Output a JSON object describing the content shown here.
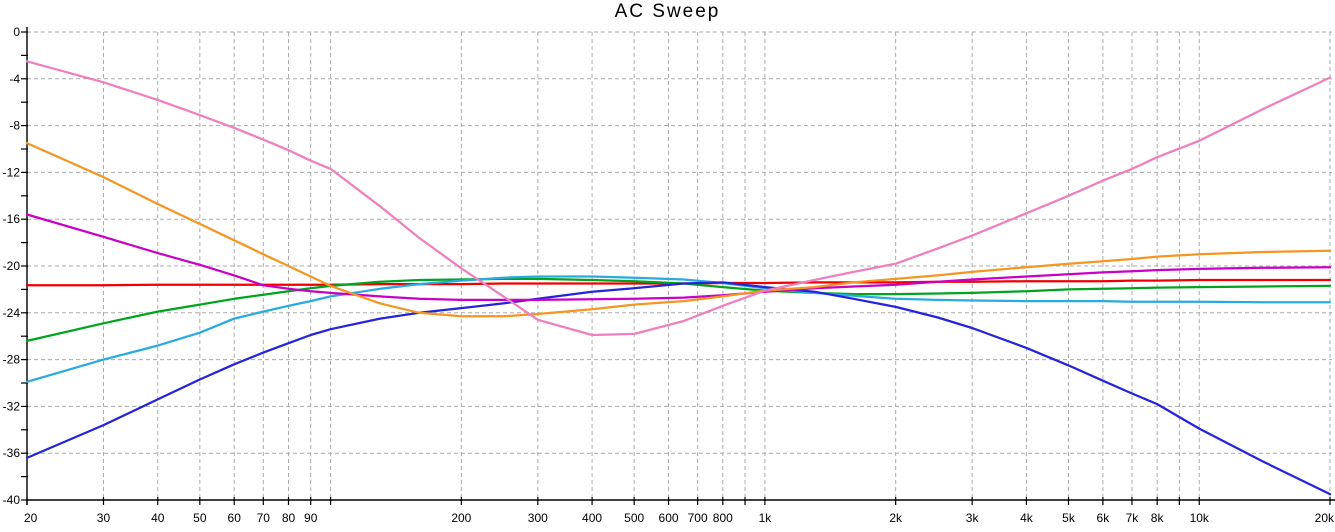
{
  "chart": {
    "title": "AC Sweep"
  },
  "chart_data": {
    "type": "line",
    "title": "AC Sweep",
    "xlabel": "",
    "ylabel": "",
    "x_axis": {
      "scale": "log",
      "unit": "Hz",
      "min": 20,
      "max": 20000,
      "ticks": [
        {
          "f": 20,
          "label": "20"
        },
        {
          "f": 30,
          "label": "30"
        },
        {
          "f": 40,
          "label": "40"
        },
        {
          "f": 50,
          "label": "50"
        },
        {
          "f": 60,
          "label": "60"
        },
        {
          "f": 70,
          "label": "70"
        },
        {
          "f": 80,
          "label": "80"
        },
        {
          "f": 90,
          "label": "90"
        },
        {
          "f": 100,
          "label": ""
        },
        {
          "f": 200,
          "label": "200"
        },
        {
          "f": 300,
          "label": "300"
        },
        {
          "f": 400,
          "label": "400"
        },
        {
          "f": 500,
          "label": "500"
        },
        {
          "f": 600,
          "label": "600"
        },
        {
          "f": 700,
          "label": "700"
        },
        {
          "f": 800,
          "label": "800"
        },
        {
          "f": 900,
          "label": ""
        },
        {
          "f": 1000,
          "label": "1k"
        },
        {
          "f": 2000,
          "label": "2k"
        },
        {
          "f": 3000,
          "label": "3k"
        },
        {
          "f": 4000,
          "label": "4k"
        },
        {
          "f": 5000,
          "label": "5k"
        },
        {
          "f": 6000,
          "label": "6k"
        },
        {
          "f": 7000,
          "label": "7k"
        },
        {
          "f": 8000,
          "label": "8k"
        },
        {
          "f": 9000,
          "label": ""
        },
        {
          "f": 10000,
          "label": "10k"
        },
        {
          "f": 20000,
          "label": "20k"
        }
      ]
    },
    "y_axis": {
      "unit": "dB",
      "min": -40,
      "max": 0,
      "label_step": 4,
      "tick_step": 2,
      "labels": [
        "0",
        "-4",
        "-8",
        "-12",
        "-16",
        "-20",
        "-24",
        "-28",
        "-32",
        "-36",
        "-40"
      ]
    },
    "grid": {
      "on": true,
      "color": "#ababab",
      "style": "dashed",
      "axis_color": "#000000"
    },
    "legend": {
      "shown": false
    },
    "x": [
      20,
      30,
      40,
      50,
      60,
      70,
      80,
      90,
      100,
      130,
      160,
      200,
      250,
      300,
      400,
      500,
      650,
      800,
      1000,
      1300,
      1600,
      2000,
      2500,
      3000,
      4000,
      5000,
      6000,
      7000,
      8000,
      10000,
      14000,
      20000
    ],
    "series": [
      {
        "name": "red",
        "color": "#f00000",
        "y": [
          -21.65,
          -21.65,
          -21.6,
          -21.6,
          -21.6,
          -21.6,
          -21.6,
          -21.6,
          -21.6,
          -21.55,
          -21.55,
          -21.55,
          -21.5,
          -21.5,
          -21.5,
          -21.5,
          -21.5,
          -21.45,
          -21.45,
          -21.4,
          -21.4,
          -21.4,
          -21.35,
          -21.35,
          -21.3,
          -21.3,
          -21.3,
          -21.25,
          -21.25,
          -21.2,
          -21.2,
          -21.2
        ]
      },
      {
        "name": "green",
        "color": "#00a41e",
        "y": [
          -26.4,
          -24.9,
          -23.9,
          -23.3,
          -22.8,
          -22.45,
          -22.15,
          -21.9,
          -21.7,
          -21.35,
          -21.2,
          -21.15,
          -21.1,
          -21.1,
          -21.2,
          -21.3,
          -21.5,
          -21.8,
          -22.1,
          -22.3,
          -22.4,
          -22.4,
          -22.35,
          -22.3,
          -22.15,
          -22.0,
          -21.95,
          -21.9,
          -21.85,
          -21.8,
          -21.75,
          -21.7
        ]
      },
      {
        "name": "cyan",
        "color": "#29aae1",
        "y": [
          -29.9,
          -28.0,
          -26.8,
          -25.7,
          -24.5,
          -23.9,
          -23.4,
          -23.0,
          -22.6,
          -21.95,
          -21.55,
          -21.25,
          -21.0,
          -20.9,
          -20.9,
          -21.0,
          -21.15,
          -21.45,
          -21.9,
          -22.3,
          -22.55,
          -22.8,
          -22.9,
          -22.95,
          -23.0,
          -23.0,
          -23.0,
          -23.05,
          -23.05,
          -23.05,
          -23.1,
          -23.1
        ]
      },
      {
        "name": "blue",
        "color": "#2424dc",
        "y": [
          -36.4,
          -33.6,
          -31.4,
          -29.7,
          -28.4,
          -27.4,
          -26.6,
          -25.9,
          -25.4,
          -24.5,
          -24.0,
          -23.6,
          -23.2,
          -22.8,
          -22.2,
          -21.9,
          -21.5,
          -21.4,
          -21.8,
          -22.2,
          -22.8,
          -23.5,
          -24.4,
          -25.3,
          -27.0,
          -28.5,
          -29.8,
          -30.9,
          -31.8,
          -33.9,
          -36.7,
          -39.5
        ]
      },
      {
        "name": "magenta",
        "color": "#c800c8",
        "y": [
          -15.6,
          -17.5,
          -18.9,
          -19.9,
          -20.8,
          -21.65,
          -21.95,
          -22.15,
          -22.3,
          -22.6,
          -22.8,
          -22.9,
          -22.9,
          -22.9,
          -22.85,
          -22.8,
          -22.7,
          -22.5,
          -22.2,
          -21.9,
          -21.75,
          -21.6,
          -21.35,
          -21.15,
          -20.9,
          -20.7,
          -20.55,
          -20.45,
          -20.35,
          -20.25,
          -20.15,
          -20.1
        ]
      },
      {
        "name": "orange",
        "color": "#f59522",
        "y": [
          -9.5,
          -12.4,
          -14.7,
          -16.4,
          -17.8,
          -19.0,
          -20.0,
          -20.9,
          -21.7,
          -23.2,
          -24.0,
          -24.3,
          -24.3,
          -24.1,
          -23.7,
          -23.3,
          -23.0,
          -22.6,
          -22.1,
          -21.8,
          -21.4,
          -21.1,
          -20.8,
          -20.5,
          -20.1,
          -19.8,
          -19.6,
          -19.4,
          -19.2,
          -19.0,
          -18.8,
          -18.7
        ]
      },
      {
        "name": "pink",
        "color": "#ef7fbe",
        "y": [
          -2.5,
          -4.3,
          -5.8,
          -7.1,
          -8.2,
          -9.2,
          -10.1,
          -11.0,
          -11.7,
          -14.9,
          -17.6,
          -20.2,
          -22.6,
          -24.6,
          -25.9,
          -25.8,
          -24.7,
          -23.4,
          -22.1,
          -21.2,
          -20.5,
          -19.8,
          -18.5,
          -17.4,
          -15.5,
          -14.0,
          -12.7,
          -11.7,
          -10.7,
          -9.3,
          -6.6,
          -3.9
        ]
      }
    ]
  }
}
